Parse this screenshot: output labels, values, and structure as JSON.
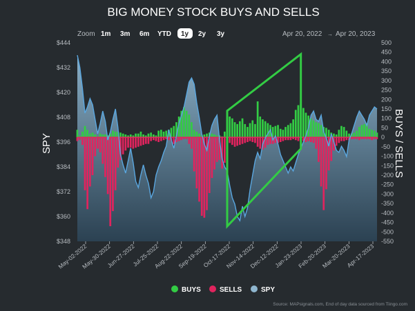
{
  "colors": {
    "background": "#262b2f",
    "buys": "#33cc44",
    "sells": "#e0245e",
    "spy_line": "#5aa7e0",
    "spy_fill": "#8fb6cf",
    "zero_line": "#e0245e",
    "annotation": "#33cc44",
    "text": "#ffffff",
    "muted": "#b8bdc2",
    "selected_bg": "#ffffff",
    "selected_text": "#222222"
  },
  "toolbar": {
    "zoom_label": "Zoom",
    "buttons": [
      "1m",
      "3m",
      "6m",
      "YTD",
      "1y",
      "2y",
      "3y"
    ],
    "selected": "1y",
    "date_from": "Apr 20, 2022",
    "date_separator": "→",
    "date_to": "Apr 20, 2023"
  },
  "legend": [
    {
      "label": "BUYS",
      "color": "#33cc44"
    },
    {
      "label": "SELLS",
      "color": "#e0245e"
    },
    {
      "label": "SPY",
      "color": "#8fb6cf"
    }
  ],
  "source": "Source: MAPsignals.com, End of day data sourced from Tiingo.com",
  "chart_data": {
    "type": "bar",
    "title": "BIG MONEY STOCK BUYS AND SELLS",
    "ylabel_left": "SPY",
    "ylabel_right": "BUYS / SELLS",
    "y_left_ticks": [
      "$444",
      "$432",
      "$420",
      "$408",
      "$396",
      "$384",
      "$372",
      "$360",
      "$348"
    ],
    "y_left_range": [
      348,
      444
    ],
    "y_right_ticks": [
      "500",
      "450",
      "400",
      "350",
      "300",
      "250",
      "200",
      "150",
      "100",
      "50",
      "0",
      "-50",
      "-100",
      "-150",
      "-200",
      "-250",
      "-300",
      "-350",
      "-400",
      "-450",
      "-500",
      "-550"
    ],
    "y_right_range": [
      -550,
      500
    ],
    "x_ticks": [
      "May-02-2022",
      "May-30-2022",
      "Jun-27-2022",
      "Jul-25-2022",
      "Aug-22-2022",
      "Sep-19-2022",
      "Oct-17-2022",
      "Nov-14-2022",
      "Dec-12-2022",
      "Jan-23-2023",
      "Feb-20-2023",
      "Mar-20-2023",
      "Apr-17-2023"
    ],
    "series": [
      {
        "name": "SPY",
        "type": "area",
        "axis": "left",
        "values": [
          438,
          432,
          422,
          410,
          413,
          417,
          414,
          407,
          400,
          405,
          411,
          406,
          397,
          401,
          407,
          412,
          403,
          390,
          385,
          381,
          387,
          393,
          386,
          377,
          374,
          380,
          385,
          380,
          376,
          369,
          372,
          380,
          384,
          387,
          391,
          394,
          402,
          397,
          393,
          399,
          405,
          409,
          413,
          419,
          425,
          427,
          424,
          415,
          408,
          400,
          395,
          392,
          399,
          404,
          407,
          409,
          397,
          388,
          384,
          382,
          375,
          369,
          366,
          360,
          358,
          365,
          360,
          364,
          373,
          380,
          387,
          391,
          388,
          395,
          398,
          400,
          402,
          397,
          399,
          395,
          390,
          387,
          384,
          381,
          384,
          382,
          386,
          390,
          393,
          396,
          399,
          403,
          409,
          411,
          407,
          406,
          409,
          401,
          398,
          394,
          400,
          396,
          392,
          391,
          394,
          392,
          389,
          397,
          400,
          404,
          408,
          411,
          409,
          407,
          404,
          409,
          411,
          413,
          412
        ]
      },
      {
        "name": "BUYS",
        "type": "bar",
        "axis": "right",
        "values": [
          40,
          10,
          30,
          60,
          40,
          20,
          25,
          15,
          5,
          20,
          15,
          15,
          10,
          20,
          35,
          30,
          30,
          25,
          20,
          15,
          10,
          15,
          10,
          20,
          20,
          30,
          15,
          10,
          20,
          25,
          15,
          10,
          35,
          40,
          30,
          35,
          40,
          50,
          60,
          80,
          110,
          140,
          160,
          140,
          120,
          80,
          40,
          30,
          20,
          10,
          15,
          20,
          25,
          20,
          15,
          10,
          10,
          5,
          30,
          80,
          110,
          100,
          80,
          70,
          85,
          100,
          70,
          55,
          75,
          90,
          70,
          190,
          110,
          95,
          85,
          75,
          65,
          55,
          60,
          65,
          45,
          40,
          55,
          65,
          75,
          95,
          145,
          170,
          175,
          155,
          130,
          115,
          100,
          90,
          80,
          75,
          65,
          55,
          50,
          40,
          25,
          20,
          15,
          40,
          60,
          55,
          35,
          20,
          20,
          25,
          35,
          55,
          65,
          70,
          75,
          45,
          40,
          35,
          25
        ]
      },
      {
        "name": "SELLS",
        "type": "bar",
        "axis": "right",
        "values": [
          -20,
          -15,
          -40,
          -280,
          -380,
          -260,
          -200,
          -100,
          -60,
          -80,
          -140,
          -210,
          -300,
          -470,
          -390,
          -280,
          -160,
          -120,
          -90,
          -70,
          -55,
          -55,
          -60,
          -55,
          -50,
          -45,
          -40,
          -35,
          -35,
          -20,
          -15,
          -20,
          -25,
          -20,
          -15,
          -10,
          -15,
          -20,
          -35,
          -25,
          -20,
          -15,
          -10,
          -10,
          -35,
          -60,
          -180,
          -270,
          -340,
          -415,
          -425,
          -385,
          -295,
          -215,
          -170,
          -130,
          -120,
          -165,
          -135,
          -55,
          -30,
          -40,
          -50,
          -45,
          -40,
          -35,
          -30,
          -25,
          -20,
          -25,
          -30,
          -50,
          -60,
          -65,
          -55,
          -40,
          -35,
          -35,
          -30,
          -30,
          -25,
          -20,
          -15,
          -15,
          -15,
          -10,
          -15,
          -20,
          -20,
          -20,
          -25,
          -20,
          -25,
          -30,
          -60,
          -130,
          -260,
          -385,
          -275,
          -175,
          -125,
          -70,
          -45,
          -30,
          -20,
          -20,
          -15,
          -15,
          -10,
          -10,
          -10,
          -15,
          -10,
          -10,
          -10,
          -10,
          -15,
          -10,
          -10
        ]
      }
    ],
    "annotation": {
      "shape": "parallelogram",
      "corners": [
        [
          59,
          140
        ],
        [
          88,
          440
        ],
        [
          88,
          -60
        ],
        [
          59,
          -470
        ]
      ]
    }
  }
}
